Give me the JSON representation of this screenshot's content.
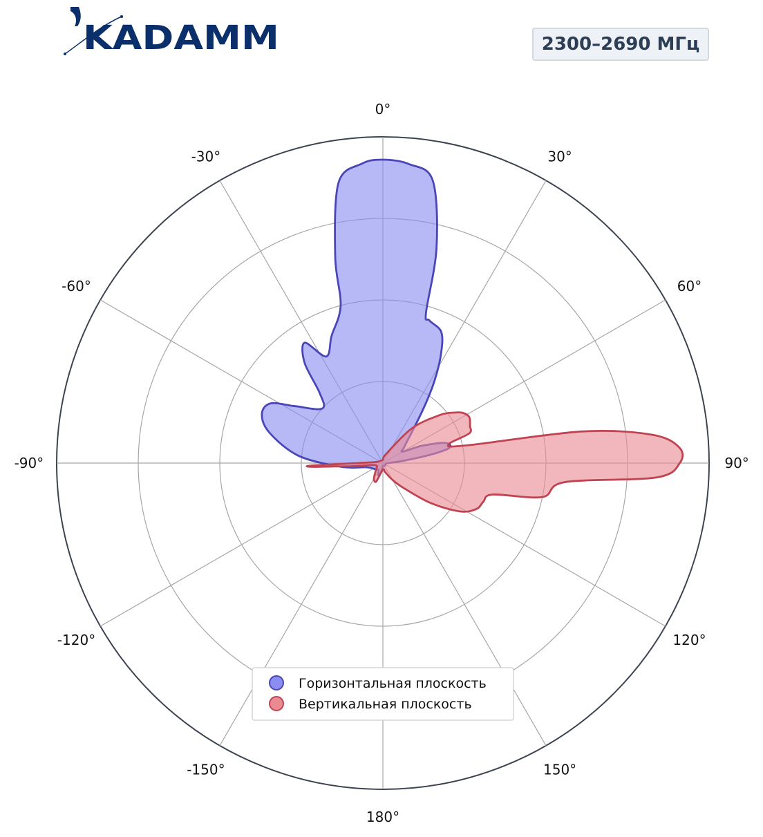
{
  "header": {
    "logo_text": "KADAMM",
    "badge": "2300–2690 МГц"
  },
  "colors": {
    "brand": "#0b2f6b",
    "badge_text": "#2c3e55",
    "horizontal_fill": "#8b8ef0",
    "horizontal_line": "#4b46b8",
    "vertical_fill": "#ea8a93",
    "vertical_line": "#bf4350",
    "grid": "#a6a6a6",
    "outer_ring": "#3d4451"
  },
  "chart_data": {
    "type": "polar",
    "theta_zero": "top",
    "theta_direction": "clockwise",
    "angle_ticks": [
      0,
      30,
      60,
      90,
      120,
      150,
      180,
      -150,
      -120,
      -90,
      -60,
      -30
    ],
    "angle_tick_labels": [
      "0°",
      "30°",
      "60°",
      "90°",
      "120°",
      "150°",
      "180°",
      "-150°",
      "-120°",
      "-90°",
      "-60°",
      "-30°"
    ],
    "radial_gridlines": [
      0.25,
      0.5,
      0.75,
      1.0
    ],
    "rlim": [
      0,
      1
    ],
    "radial_tick_labels_shown": false,
    "legend": "lower-center",
    "series": [
      {
        "name": "Горизонтальная плоскость",
        "points": [
          [
            0,
            0.93
          ],
          [
            5,
            0.92
          ],
          [
            10,
            0.88
          ],
          [
            14,
            0.68
          ],
          [
            16,
            0.48
          ],
          [
            18,
            0.46
          ],
          [
            24,
            0.44
          ],
          [
            28,
            0.38
          ],
          [
            32,
            0.3
          ],
          [
            36,
            0.22
          ],
          [
            42,
            0.14
          ],
          [
            48,
            0.1
          ],
          [
            54,
            0.08
          ],
          [
            60,
            0.07
          ],
          [
            66,
            0.13
          ],
          [
            72,
            0.2
          ],
          [
            77,
            0.21
          ],
          [
            80,
            0.15
          ],
          [
            84,
            0.06
          ],
          [
            88,
            0.02
          ],
          [
            100,
            0.01
          ],
          [
            150,
            0.01
          ],
          [
            180,
            0.01
          ],
          [
            -168,
            0.03
          ],
          [
            -158,
            0.04
          ],
          [
            -148,
            0.025
          ],
          [
            -130,
            0.03
          ],
          [
            -105,
            0.05
          ],
          [
            -95,
            0.13
          ],
          [
            -85,
            0.26
          ],
          [
            -75,
            0.36
          ],
          [
            -68,
            0.4
          ],
          [
            -62,
            0.39
          ],
          [
            -57,
            0.32
          ],
          [
            -48,
            0.25
          ],
          [
            -42,
            0.29
          ],
          [
            -38,
            0.39
          ],
          [
            -33,
            0.44
          ],
          [
            -28,
            0.37
          ],
          [
            -22,
            0.42
          ],
          [
            -15,
            0.5
          ],
          [
            -13,
            0.65
          ],
          [
            -9,
            0.87
          ],
          [
            -4,
            0.92
          ]
        ]
      },
      {
        "name": "Вертикальная плоскость",
        "points": [
          [
            0,
            0.01
          ],
          [
            20,
            0.03
          ],
          [
            40,
            0.14
          ],
          [
            50,
            0.23
          ],
          [
            55,
            0.27
          ],
          [
            58,
            0.29
          ],
          [
            62,
            0.3
          ],
          [
            67,
            0.29
          ],
          [
            71,
            0.28
          ],
          [
            74,
            0.21
          ],
          [
            78,
            0.26
          ],
          [
            81,
            0.62
          ],
          [
            84,
            0.83
          ],
          [
            87,
            0.91
          ],
          [
            90,
            0.91
          ],
          [
            93,
            0.84
          ],
          [
            96,
            0.56
          ],
          [
            102,
            0.5
          ],
          [
            106,
            0.35
          ],
          [
            111,
            0.33
          ],
          [
            116,
            0.32
          ],
          [
            122,
            0.28
          ],
          [
            130,
            0.19
          ],
          [
            140,
            0.1
          ],
          [
            150,
            0.06
          ],
          [
            165,
            0.03
          ],
          [
            180,
            0.02
          ],
          [
            -160,
            0.06
          ],
          [
            -150,
            0.055
          ],
          [
            -135,
            0.03
          ],
          [
            -115,
            0.02
          ],
          [
            -100,
            0.035
          ],
          [
            -96,
            0.09
          ],
          [
            -94,
            0.15
          ],
          [
            -93,
            0.22
          ],
          [
            -92,
            0.22
          ],
          [
            -90,
            0.08
          ],
          [
            -80,
            0.02
          ],
          [
            -40,
            0.01
          ]
        ]
      }
    ]
  }
}
